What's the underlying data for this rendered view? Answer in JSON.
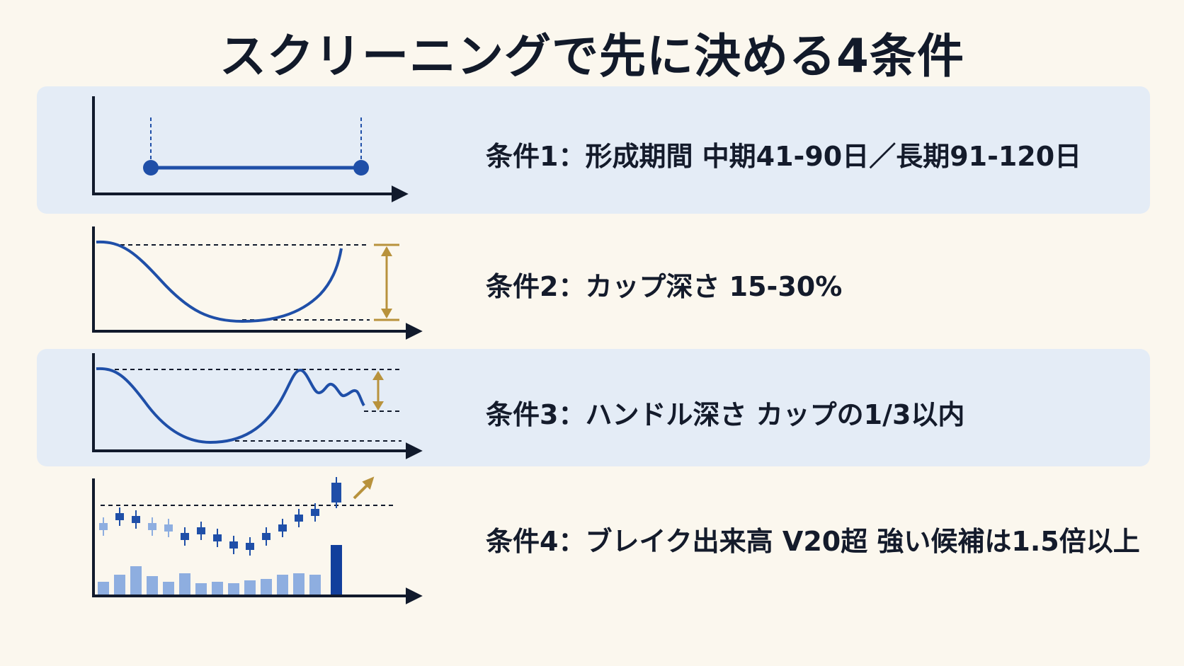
{
  "title": "スクリーニングで先に決める4条件",
  "colors": {
    "background": "#fbf7ee",
    "band": "#e4ecf6",
    "line_blue": "#1f4fa8",
    "accent_gold": "#b8923c",
    "axis": "#111a2c",
    "volume_light": "#8eaee0",
    "volume_dark": "#123f9c"
  },
  "conditions": [
    {
      "label": "条件1：形成期間 中期41-90日／長期91-120日",
      "icon": "period-range-chart"
    },
    {
      "label": "条件2：カップ深さ 15-30%",
      "icon": "cup-depth-chart"
    },
    {
      "label": "条件3：ハンドル深さ カップの1/3以内",
      "icon": "handle-depth-chart"
    },
    {
      "label": "条件4：ブレイク出来高 V20超 強い候補は1.5倍以上",
      "icon": "breakout-volume-chart"
    }
  ]
}
